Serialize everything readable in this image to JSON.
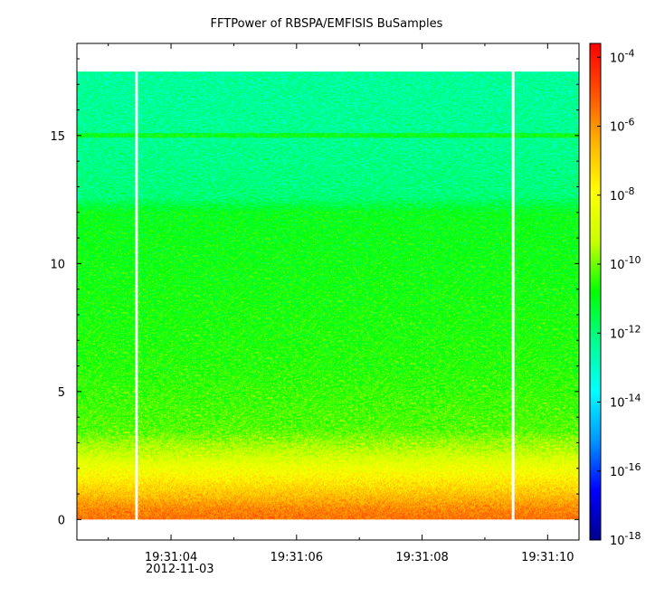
{
  "chart_data": {
    "type": "heatmap",
    "title": "FFTPower of RBSPA/EMFISIS  BuSamples",
    "xlabel": "",
    "ylabel": "",
    "x_ticks": [
      {
        "label": "19:31:04",
        "t": 4
      },
      {
        "label": "19:31:06",
        "t": 6
      },
      {
        "label": "19:31:08",
        "t": 8
      },
      {
        "label": "19:31:10",
        "t": 10
      }
    ],
    "x_date_label": "2012-11-03",
    "x_range_seconds": [
      2.5,
      10.5
    ],
    "y_ticks": [
      0,
      5,
      10,
      15
    ],
    "ylim": [
      -0.8,
      18.6
    ],
    "data_y_range": [
      0,
      17.5
    ],
    "gaps_seconds": [
      3.45,
      9.45
    ],
    "narrowband_line_y": 15.0,
    "colorbar": {
      "scale": "log",
      "range_exponent": [
        -18,
        -3.6
      ],
      "tick_exponents": [
        -4,
        -6,
        -8,
        -10,
        -12,
        -14,
        -16,
        -18
      ],
      "tick_base": "10",
      "colors": [
        "#00008b",
        "#0000ff",
        "#0096ff",
        "#00ffff",
        "#00ff90",
        "#00ff00",
        "#c8ff00",
        "#ffff00",
        "#ffb400",
        "#ff5000",
        "#ff0000"
      ]
    },
    "profile": [
      {
        "y": 0.0,
        "exp": -5.5
      },
      {
        "y": 0.4,
        "exp": -5.8
      },
      {
        "y": 1.0,
        "exp": -6.8
      },
      {
        "y": 1.8,
        "exp": -8.0
      },
      {
        "y": 2.6,
        "exp": -9.2
      },
      {
        "y": 3.5,
        "exp": -10.2
      },
      {
        "y": 6.0,
        "exp": -10.6
      },
      {
        "y": 9.0,
        "exp": -10.8
      },
      {
        "y": 12.0,
        "exp": -11.0
      },
      {
        "y": 12.6,
        "exp": -12.0
      },
      {
        "y": 15.0,
        "exp": -12.3
      },
      {
        "y": 17.5,
        "exp": -12.4
      }
    ]
  }
}
